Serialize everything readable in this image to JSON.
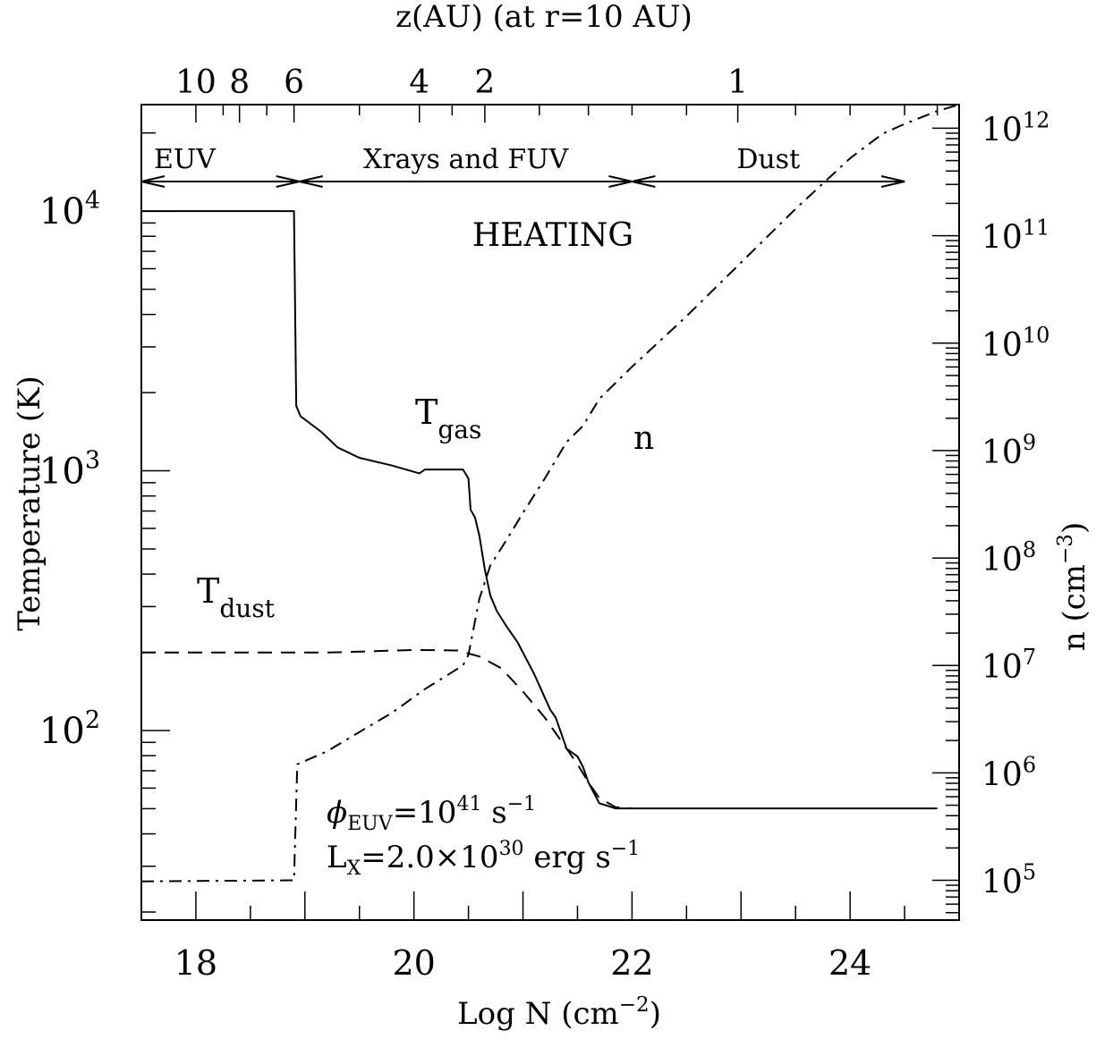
{
  "chart_data": {
    "type": "line",
    "top_axis_label": "z(AU) (at r=10 AU)",
    "top_ticks": [
      {
        "label": "10",
        "x": 18.0
      },
      {
        "label": "8",
        "x": 18.4
      },
      {
        "label": "6",
        "x": 18.9
      },
      {
        "label": "4",
        "x": 20.05
      },
      {
        "label": "2",
        "x": 20.65
      },
      {
        "label": "1",
        "x": 22.97
      }
    ],
    "xlabel": "Log N (cm",
    "xlabel_sup": "−2",
    "xlabel_end": ")",
    "xlim": [
      17.5,
      25.0
    ],
    "x_ticks": [
      18,
      20,
      22,
      24
    ],
    "ylabel_left": "Temperature (K)",
    "ylim_left_log": [
      1.27,
      4.41
    ],
    "left_ticks": [
      {
        "base": "10",
        "exp": "2",
        "log": 2
      },
      {
        "base": "10",
        "exp": "3",
        "log": 3
      },
      {
        "base": "10",
        "exp": "4",
        "log": 4
      }
    ],
    "ylabel_right": "n (cm",
    "ylabel_right_sup": "−3",
    "ylabel_right_end": ")",
    "ylim_right_log": [
      4.63,
      12.22
    ],
    "right_ticks": [
      {
        "base": "10",
        "exp": "5",
        "log": 5
      },
      {
        "base": "10",
        "exp": "6",
        "log": 6
      },
      {
        "base": "10",
        "exp": "7",
        "log": 7
      },
      {
        "base": "10",
        "exp": "8",
        "log": 8
      },
      {
        "base": "10",
        "exp": "9",
        "log": 9
      },
      {
        "base": "10",
        "exp": "10",
        "log": 10
      },
      {
        "base": "10",
        "exp": "11",
        "log": 11
      },
      {
        "base": "10",
        "exp": "12",
        "log": 12
      }
    ],
    "regions": [
      {
        "label": "EUV",
        "from": 17.5,
        "to": 18.95
      },
      {
        "label": "Xrays and FUV",
        "from": 18.95,
        "to": 22.0
      },
      {
        "label": "Dust",
        "from": 22.0,
        "to": 24.5
      }
    ],
    "heating_label": "HEATING",
    "series": [
      {
        "label": "T",
        "label_sub": "gas",
        "axis": "left",
        "style": "solid",
        "points": [
          [
            17.5,
            4.0
          ],
          [
            18.9,
            4.0
          ],
          [
            18.92,
            3.25
          ],
          [
            18.96,
            3.21
          ],
          [
            19.15,
            3.15
          ],
          [
            19.3,
            3.09
          ],
          [
            19.5,
            3.05
          ],
          [
            19.8,
            3.02
          ],
          [
            20.05,
            2.99
          ],
          [
            20.1,
            3.005
          ],
          [
            20.45,
            3.005
          ],
          [
            20.5,
            2.97
          ],
          [
            20.52,
            2.85
          ],
          [
            20.56,
            2.82
          ],
          [
            20.6,
            2.75
          ],
          [
            20.65,
            2.62
          ],
          [
            20.7,
            2.52
          ],
          [
            20.76,
            2.46
          ],
          [
            20.85,
            2.4
          ],
          [
            20.95,
            2.34
          ],
          [
            21.1,
            2.22
          ],
          [
            21.25,
            2.08
          ],
          [
            21.3,
            2.05
          ],
          [
            21.4,
            1.93
          ],
          [
            21.5,
            1.9
          ],
          [
            21.55,
            1.86
          ],
          [
            21.6,
            1.8
          ],
          [
            21.7,
            1.72
          ],
          [
            21.85,
            1.7
          ],
          [
            22.0,
            1.7
          ],
          [
            24.8,
            1.7
          ]
        ]
      },
      {
        "label": "T",
        "label_sub": "dust",
        "axis": "left",
        "style": "dashed",
        "points": [
          [
            17.5,
            2.3
          ],
          [
            19.2,
            2.3
          ],
          [
            19.6,
            2.305
          ],
          [
            20.0,
            2.31
          ],
          [
            20.4,
            2.308
          ],
          [
            20.6,
            2.285
          ],
          [
            20.8,
            2.24
          ],
          [
            21.0,
            2.15
          ],
          [
            21.2,
            2.05
          ],
          [
            21.4,
            1.93
          ],
          [
            21.5,
            1.87
          ],
          [
            21.6,
            1.8
          ],
          [
            21.7,
            1.74
          ],
          [
            21.85,
            1.705
          ],
          [
            22.0,
            1.7
          ]
        ]
      },
      {
        "label": "n",
        "axis": "right",
        "style": "dashdot",
        "points": [
          [
            17.5,
            4.99
          ],
          [
            18.9,
            5.0
          ],
          [
            18.93,
            6.08
          ],
          [
            19.2,
            6.2
          ],
          [
            19.5,
            6.38
          ],
          [
            19.8,
            6.56
          ],
          [
            20.1,
            6.78
          ],
          [
            20.45,
            7.0
          ],
          [
            20.5,
            7.1
          ],
          [
            20.6,
            7.62
          ],
          [
            20.7,
            7.93
          ],
          [
            20.85,
            8.17
          ],
          [
            21.0,
            8.42
          ],
          [
            21.2,
            8.74
          ],
          [
            21.4,
            9.08
          ],
          [
            21.55,
            9.23
          ],
          [
            21.7,
            9.48
          ],
          [
            21.9,
            9.68
          ],
          [
            22.0,
            9.78
          ],
          [
            22.5,
            10.25
          ],
          [
            23.0,
            10.75
          ],
          [
            23.5,
            11.25
          ],
          [
            24.0,
            11.72
          ],
          [
            24.3,
            11.95
          ],
          [
            24.5,
            12.04
          ],
          [
            24.8,
            12.16
          ],
          [
            25.0,
            12.22
          ]
        ]
      }
    ],
    "annotation_1": {
      "sym": "ϕ",
      "sub": "EUV",
      "text": "=10",
      "sup": "41",
      "text2": " s",
      "sup2": "−1"
    },
    "annotation_2": {
      "sym": "L",
      "sub": "X",
      "text": "=2.0×10",
      "sup": "30",
      "text2": " erg s",
      "sup2": "−1"
    },
    "n_label": "n"
  }
}
